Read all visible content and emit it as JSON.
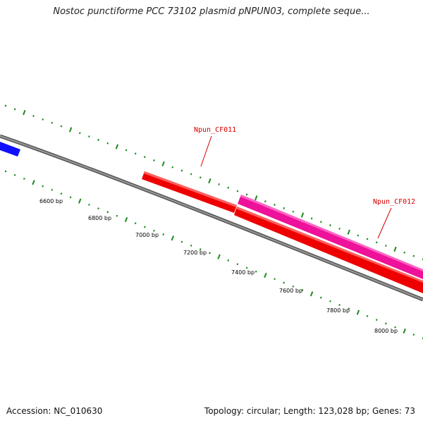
{
  "title": "Nostoc punctiforme PCC 73102 plasmid pNPUN03, complete seque...",
  "accession_text": "Accession: NC_010630",
  "summary_text": "Topology: circular; Length: 123,028 bp; Genes: 73",
  "colors": {
    "backbone": "#808080",
    "dot_ticks": "#1a8a1a",
    "gene_blue": "#1010ff",
    "gene_red": "#ee0000",
    "gene_magenta": "#ee1199",
    "label_red": "#d40000"
  },
  "position_labels": [
    "6600 bp",
    "6800 bp",
    "7000 bp",
    "7200 bp",
    "7400 bp",
    "7600 bp",
    "7800 bp",
    "8000 bp"
  ],
  "genes": [
    {
      "name": "",
      "color": "blue"
    },
    {
      "name": "Npun_CF011",
      "color": "red"
    },
    {
      "name": "",
      "color": "red"
    },
    {
      "name": "Npun_CF012",
      "color": "magenta"
    }
  ]
}
